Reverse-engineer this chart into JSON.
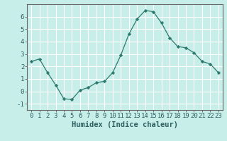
{
  "x": [
    0,
    1,
    2,
    3,
    4,
    5,
    6,
    7,
    8,
    9,
    10,
    11,
    12,
    13,
    14,
    15,
    16,
    17,
    18,
    19,
    20,
    21,
    22,
    23
  ],
  "y": [
    2.4,
    2.6,
    1.5,
    0.5,
    -0.6,
    -0.65,
    0.1,
    0.3,
    0.7,
    0.8,
    1.5,
    2.9,
    4.6,
    5.8,
    6.5,
    6.4,
    5.5,
    4.3,
    3.6,
    3.5,
    3.1,
    2.4,
    2.2,
    1.5
  ],
  "xlabel": "Humidex (Indice chaleur)",
  "xlim": [
    -0.5,
    23.5
  ],
  "ylim": [
    -1.5,
    7.0
  ],
  "yticks": [
    -1,
    0,
    1,
    2,
    3,
    4,
    5,
    6
  ],
  "xticks": [
    0,
    1,
    2,
    3,
    4,
    5,
    6,
    7,
    8,
    9,
    10,
    11,
    12,
    13,
    14,
    15,
    16,
    17,
    18,
    19,
    20,
    21,
    22,
    23
  ],
  "line_color": "#2d7a6e",
  "marker": "D",
  "marker_size": 2.2,
  "bg_color": "#c8eeea",
  "grid_color": "#ffffff",
  "axis_color": "#666666",
  "font_color": "#2d6060",
  "xlabel_fontsize": 7.5,
  "tick_fontsize": 6.5
}
